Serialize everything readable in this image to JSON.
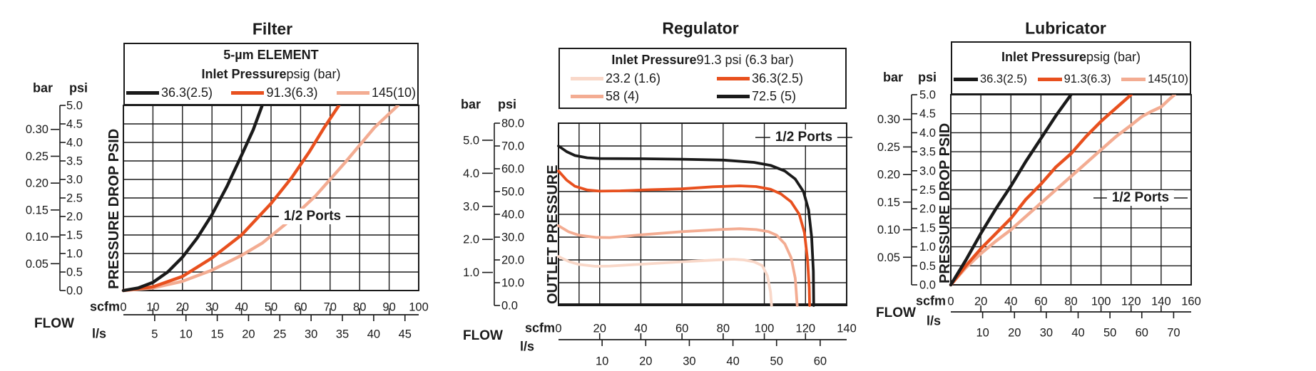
{
  "colors": {
    "black": "#1a1a1a",
    "orange": "#E8501E",
    "salmon": "#F3AC92",
    "light_pink": "#F9D8C9"
  },
  "chart_data": [
    {
      "type": "line",
      "title": "Filter",
      "annotation": "1/2 Ports",
      "legend": {
        "line1": "5-µm ELEMENT",
        "heading_bold": "Inlet Pressure",
        "heading_rest": " psig (bar)",
        "entries": [
          {
            "label": "36.3(2.5)",
            "color": "#1a1a1a"
          },
          {
            "label": "91.3(6.3)",
            "color": "#E8501E"
          },
          {
            "label": "145(10)",
            "color": "#F3AC92"
          }
        ]
      },
      "y_axis": {
        "left_unit": "bar",
        "right_unit": "psi",
        "axis_label": "PRESSURE DROP PSID",
        "psi_lim": [
          0,
          5
        ],
        "psi_tick_labels": [
          "5.0",
          "4.5",
          "4.0",
          "3.5",
          "3.0",
          "2.5",
          "2.0",
          "1.5",
          "1.0",
          "0.5",
          "0.0"
        ],
        "psi_tick_values": [
          5,
          4.5,
          4,
          3.5,
          3,
          2.5,
          2,
          1.5,
          1,
          0.5,
          0
        ],
        "bar_tick_labels": [
          "0.30",
          "0.25",
          "0.20",
          "0.15",
          "0.10",
          "0.05"
        ],
        "bar_tick_values": [
          0.3,
          0.25,
          0.2,
          0.15,
          0.1,
          0.05
        ]
      },
      "x_axis": {
        "flow_label": "FLOW",
        "unit_top": "scfm",
        "unit_bottom": "l/s",
        "xlim": [
          0,
          100
        ],
        "scfm_tick_labels": [
          "0",
          "10",
          "20",
          "30",
          "40",
          "50",
          "60",
          "70",
          "80",
          "90",
          "100"
        ],
        "scfm_tick_values": [
          0,
          10,
          20,
          30,
          40,
          50,
          60,
          70,
          80,
          90,
          100
        ],
        "ls_tick_labels": [
          "5",
          "10",
          "15",
          "20",
          "25",
          "30",
          "35",
          "40",
          "45"
        ],
        "ls_tick_values": [
          5,
          10,
          15,
          20,
          25,
          30,
          35,
          40,
          45
        ]
      },
      "series": [
        {
          "name": "145(10)",
          "color": "#F3AC92",
          "points": [
            [
              0,
              0
            ],
            [
              10,
              0.07
            ],
            [
              20,
              0.25
            ],
            [
              30,
              0.55
            ],
            [
              40,
              0.95
            ],
            [
              47,
              1.28
            ],
            [
              55,
              1.8
            ],
            [
              65,
              2.55
            ],
            [
              75,
              3.45
            ],
            [
              85,
              4.4
            ],
            [
              93,
              5.0
            ]
          ]
        },
        {
          "name": "91.3(6.3)",
          "color": "#E8501E",
          "points": [
            [
              0,
              0
            ],
            [
              10,
              0.1
            ],
            [
              20,
              0.38
            ],
            [
              30,
              0.88
            ],
            [
              40,
              1.5
            ],
            [
              50,
              2.35
            ],
            [
              57,
              3.05
            ],
            [
              63,
              3.75
            ],
            [
              68,
              4.4
            ],
            [
              73,
              5.0
            ]
          ]
        },
        {
          "name": "36.3(2.5)",
          "color": "#1a1a1a",
          "points": [
            [
              0,
              0
            ],
            [
              5,
              0.07
            ],
            [
              10,
              0.22
            ],
            [
              15,
              0.5
            ],
            [
              20,
              0.9
            ],
            [
              25,
              1.42
            ],
            [
              30,
              2.05
            ],
            [
              35,
              2.8
            ],
            [
              40,
              3.65
            ],
            [
              44,
              4.35
            ],
            [
              47,
              5.0
            ]
          ]
        }
      ]
    },
    {
      "type": "line",
      "title": "Regulator",
      "annotation": "1/2 Ports",
      "legend": {
        "heading_bold": "Inlet Pressure",
        "heading_rest": " 91.3 psi (6.3 bar)",
        "entries": [
          {
            "label": "23.2 (1.6)",
            "color": "#F9D8C9"
          },
          {
            "label": "36.3(2.5)",
            "color": "#E8501E"
          },
          {
            "label": "58 (4)",
            "color": "#F3AC92"
          },
          {
            "label": "72.5 (5)",
            "color": "#1a1a1a"
          }
        ]
      },
      "y_axis": {
        "left_unit": "bar",
        "right_unit": "psi",
        "axis_label": "OUTLET PRESSURE",
        "psi_lim": [
          0,
          80
        ],
        "psi_tick_labels": [
          "80.0",
          "70.0",
          "60.0",
          "50.0",
          "40.0",
          "30.0",
          "20.0",
          "10.0",
          "0.0"
        ],
        "psi_tick_values": [
          80,
          70,
          60,
          50,
          40,
          30,
          20,
          10,
          0
        ],
        "bar_tick_labels": [
          "5.0",
          "4.0",
          "3.0",
          "2.0",
          "1.0"
        ],
        "bar_tick_values": [
          5,
          4,
          3,
          2,
          1
        ]
      },
      "x_axis": {
        "flow_label": "FLOW",
        "unit_top": "scfm",
        "unit_bottom": "l/s",
        "xlim": [
          0,
          140
        ],
        "scfm_tick_labels": [
          "0",
          "20",
          "40",
          "60",
          "80",
          "100",
          "120",
          "140"
        ],
        "scfm_tick_values": [
          0,
          20,
          40,
          60,
          80,
          100,
          120,
          140
        ],
        "ls_tick_labels": [
          "10",
          "20",
          "30",
          "40",
          "50",
          "60"
        ],
        "ls_tick_values": [
          10,
          20,
          30,
          40,
          50,
          60
        ]
      },
      "series": [
        {
          "name": "23.2 (1.6)",
          "color": "#F9D8C9",
          "points": [
            [
              0,
              21.5
            ],
            [
              5,
              19.3
            ],
            [
              10,
              18
            ],
            [
              18,
              17.2
            ],
            [
              25,
              17.3
            ],
            [
              40,
              18.1
            ],
            [
              60,
              19.2
            ],
            [
              75,
              19.9
            ],
            [
              85,
              20.3
            ],
            [
              90,
              20
            ],
            [
              95,
              19.2
            ],
            [
              99,
              17.5
            ],
            [
              101.5,
              13
            ],
            [
              103,
              6
            ],
            [
              103.5,
              0
            ]
          ]
        },
        {
          "name": "58 (4)",
          "color": "#F3AC92",
          "points": [
            [
              0,
              35
            ],
            [
              5,
              32.3
            ],
            [
              10,
              30.8
            ],
            [
              18,
              29.9
            ],
            [
              25,
              29.8
            ],
            [
              40,
              31
            ],
            [
              60,
              32.4
            ],
            [
              78,
              33.3
            ],
            [
              88,
              33.7
            ],
            [
              96,
              33.3
            ],
            [
              102,
              32.4
            ],
            [
              106,
              30.8
            ],
            [
              110,
              27
            ],
            [
              113,
              21
            ],
            [
              115,
              12
            ],
            [
              116,
              0
            ]
          ]
        },
        {
          "name": "36.3(2.5)",
          "color": "#E8501E",
          "points": [
            [
              0,
              59
            ],
            [
              4,
              55
            ],
            [
              8,
              52.3
            ],
            [
              14,
              50.7
            ],
            [
              20,
              50.2
            ],
            [
              30,
              50.3
            ],
            [
              45,
              50.8
            ],
            [
              60,
              51.2
            ],
            [
              75,
              52.1
            ],
            [
              88,
              52.5
            ],
            [
              96,
              52.2
            ],
            [
              103,
              51
            ],
            [
              108,
              49
            ],
            [
              113,
              45.5
            ],
            [
              117,
              40
            ],
            [
              119.5,
              32
            ],
            [
              121,
              20
            ],
            [
              121.8,
              8
            ],
            [
              122,
              0
            ]
          ]
        },
        {
          "name": "72.5 (5)",
          "color": "#1a1a1a",
          "points": [
            [
              0,
              70
            ],
            [
              4,
              67.5
            ],
            [
              8,
              65.8
            ],
            [
              14,
              64.8
            ],
            [
              20,
              64.5
            ],
            [
              40,
              64.4
            ],
            [
              60,
              64.2
            ],
            [
              80,
              63.8
            ],
            [
              95,
              62.8
            ],
            [
              103,
              61.5
            ],
            [
              110,
              59
            ],
            [
              115,
              55.5
            ],
            [
              119,
              50
            ],
            [
              121.5,
              42
            ],
            [
              123,
              30
            ],
            [
              123.8,
              15
            ],
            [
              124,
              0
            ]
          ]
        }
      ]
    },
    {
      "type": "line",
      "title": "Lubricator",
      "annotation": "1/2 Ports",
      "legend": {
        "heading_bold": "Inlet Pressure",
        "heading_rest": " psig (bar)",
        "entries": [
          {
            "label": "36.3(2.5)",
            "color": "#1a1a1a"
          },
          {
            "label": "91.3(6.3)",
            "color": "#E8501E"
          },
          {
            "label": "145(10)",
            "color": "#F3AC92"
          }
        ]
      },
      "y_axis": {
        "left_unit": "bar",
        "right_unit": "psi",
        "axis_label": "PRESSURE DROP PSID",
        "psi_lim": [
          0,
          5
        ],
        "psi_tick_labels": [
          "5.0",
          "4.5",
          "4.0",
          "3.5",
          "3.0",
          "2.5",
          "2.0",
          "1.5",
          "1.0",
          "0.5",
          "0.0"
        ],
        "psi_tick_values": [
          5,
          4.5,
          4,
          3.5,
          3,
          2.5,
          2,
          1.5,
          1,
          0.5,
          0
        ],
        "bar_tick_labels": [
          "0.30",
          "0.25",
          "0.20",
          "0.15",
          "0.10",
          "0.05"
        ],
        "bar_tick_values": [
          0.3,
          0.25,
          0.2,
          0.15,
          0.1,
          0.05
        ]
      },
      "x_axis": {
        "flow_label": "FLOW",
        "unit_top": "scfm",
        "unit_bottom": "l/s",
        "xlim": [
          0,
          160
        ],
        "scfm_tick_labels": [
          "0",
          "20",
          "40",
          "60",
          "80",
          "100",
          "120",
          "140",
          "160"
        ],
        "scfm_tick_values": [
          0,
          20,
          40,
          60,
          80,
          100,
          120,
          140,
          160
        ],
        "ls_tick_labels": [
          "10",
          "20",
          "30",
          "40",
          "50",
          "60",
          "70"
        ],
        "ls_tick_values": [
          10,
          20,
          30,
          40,
          50,
          60,
          70
        ]
      },
      "series": [
        {
          "name": "145(10)",
          "color": "#F3AC92",
          "points": [
            [
              0,
              0
            ],
            [
              10,
              0.45
            ],
            [
              20,
              0.82
            ],
            [
              30,
              1.15
            ],
            [
              40,
              1.45
            ],
            [
              50,
              1.8
            ],
            [
              60,
              2.15
            ],
            [
              70,
              2.5
            ],
            [
              80,
              2.85
            ],
            [
              90,
              3.2
            ],
            [
              100,
              3.55
            ],
            [
              110,
              3.9
            ],
            [
              120,
              4.2
            ],
            [
              127,
              4.42
            ],
            [
              133,
              4.55
            ],
            [
              140,
              4.68
            ],
            [
              146,
              4.9
            ],
            [
              149,
              5.0
            ]
          ]
        },
        {
          "name": "91.3(6.3)",
          "color": "#E8501E",
          "points": [
            [
              0,
              0
            ],
            [
              10,
              0.5
            ],
            [
              20,
              0.95
            ],
            [
              30,
              1.35
            ],
            [
              40,
              1.75
            ],
            [
              50,
              2.25
            ],
            [
              60,
              2.65
            ],
            [
              70,
              3.1
            ],
            [
              80,
              3.45
            ],
            [
              90,
              3.9
            ],
            [
              100,
              4.3
            ],
            [
              110,
              4.65
            ],
            [
              120,
              5.0
            ]
          ]
        },
        {
          "name": "36.3(2.5)",
          "color": "#1a1a1a",
          "points": [
            [
              0,
              0
            ],
            [
              10,
              0.65
            ],
            [
              20,
              1.35
            ],
            [
              30,
              2.0
            ],
            [
              40,
              2.6
            ],
            [
              50,
              3.25
            ],
            [
              60,
              3.85
            ],
            [
              70,
              4.45
            ],
            [
              80,
              5.0
            ]
          ]
        }
      ]
    }
  ]
}
